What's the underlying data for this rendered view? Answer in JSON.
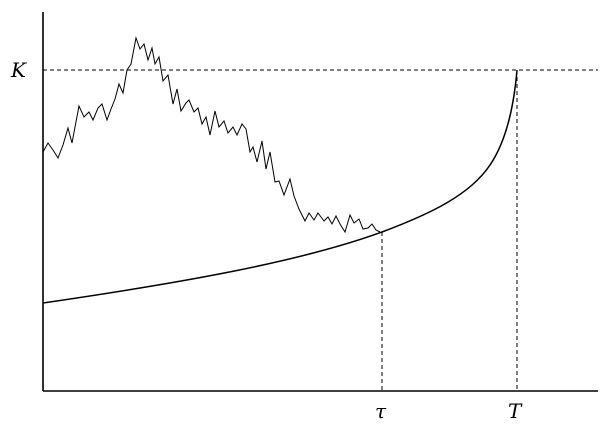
{
  "labels": {
    "strike": "K",
    "stopping_time": "τ",
    "maturity": "T"
  }
}
